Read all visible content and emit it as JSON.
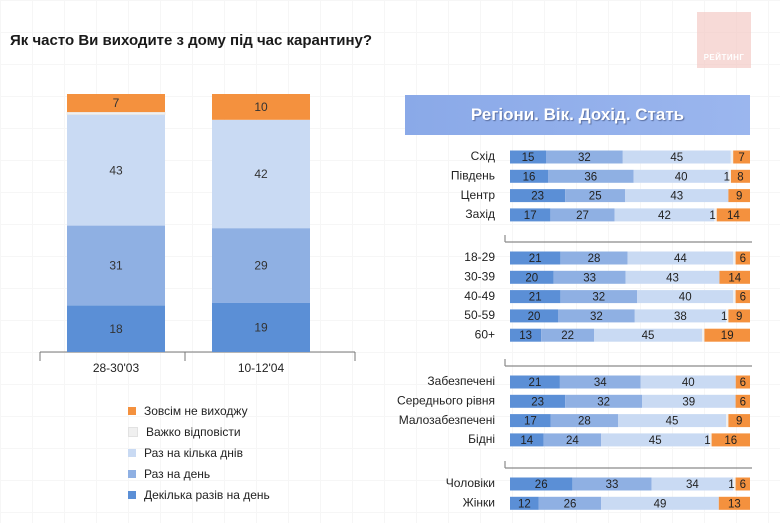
{
  "title": "Як часто Ви виходите з дому під час карантину?",
  "logo_text": "РЕЙТИНГ",
  "panel_title": "Регіони. Вік. Дохід. Стать",
  "colors": {
    "several_daily": "#5b8fd6",
    "once_daily": "#8fb0e3",
    "few_days": "#c9daf3",
    "hard_to_say": "#f0f0f0",
    "never": "#f4913e"
  },
  "legend": [
    {
      "label": "Зовсім не виходжу",
      "color_key": "never"
    },
    {
      "label": "Важко відповісти",
      "color_key": "hard_to_say"
    },
    {
      "label": "Раз на кілька днів",
      "color_key": "few_days"
    },
    {
      "label": "Раз на день",
      "color_key": "once_daily"
    },
    {
      "label": "Декілька разів на день",
      "color_key": "several_daily"
    }
  ],
  "chart_data": [
    {
      "type": "bar",
      "stacked": true,
      "categories": [
        "28-30'03",
        "10-12'04"
      ],
      "series": [
        {
          "name": "Декілька разів на день",
          "values": [
            18,
            19
          ],
          "labels": [
            "18",
            "19"
          ]
        },
        {
          "name": "Раз на день",
          "values": [
            31,
            29
          ],
          "labels": [
            "31",
            "29"
          ]
        },
        {
          "name": "Раз на кілька днів",
          "values": [
            43,
            42
          ],
          "labels": [
            "43",
            "42"
          ]
        },
        {
          "name": "Важко відповісти",
          "values": [
            1,
            0
          ],
          "labels": [
            "",
            ""
          ]
        },
        {
          "name": "Зовсім не виходжу",
          "values": [
            7,
            10
          ],
          "labels": [
            "7",
            "10"
          ]
        }
      ]
    },
    {
      "type": "bar",
      "stacked": true,
      "horizontal": true,
      "title": "Регіони. Вік. Дохід. Стать",
      "groups": [
        {
          "rows": [
            {
              "label": "Схід",
              "values": [
                15,
                32,
                45,
                1,
                7
              ],
              "labels": [
                "15",
                "32",
                "45",
                "",
                "7"
              ]
            },
            {
              "label": "Південь",
              "values": [
                16,
                36,
                40,
                1,
                8
              ],
              "labels": [
                "16",
                "36",
                "40",
                "1",
                "8"
              ]
            },
            {
              "label": "Центр",
              "values": [
                23,
                25,
                43,
                0,
                9
              ],
              "labels": [
                "23",
                "25",
                "43",
                "",
                "9"
              ]
            },
            {
              "label": "Захід",
              "values": [
                17,
                27,
                42,
                1,
                14
              ],
              "labels": [
                "17",
                "27",
                "42",
                "1",
                "14"
              ]
            }
          ]
        },
        {
          "rows": [
            {
              "label": "18-29",
              "values": [
                21,
                28,
                44,
                1,
                6
              ],
              "labels": [
                "21",
                "28",
                "44",
                "",
                "6"
              ]
            },
            {
              "label": "30-39",
              "values": [
                20,
                33,
                43,
                0,
                14
              ],
              "labels": [
                "20",
                "33",
                "43",
                "",
                "14"
              ]
            },
            {
              "label": "40-49",
              "values": [
                21,
                32,
                40,
                1,
                6
              ],
              "labels": [
                "21",
                "32",
                "40",
                "",
                "6"
              ]
            },
            {
              "label": "50-59",
              "values": [
                20,
                32,
                38,
                1,
                9
              ],
              "labels": [
                "20",
                "32",
                "38",
                "1",
                "9"
              ]
            },
            {
              "label": "60+",
              "values": [
                13,
                22,
                45,
                1,
                19
              ],
              "labels": [
                "13",
                "22",
                "45",
                "",
                "19"
              ]
            }
          ]
        },
        {
          "rows": [
            {
              "label": "Забезпечені",
              "values": [
                21,
                34,
                40,
                0,
                6
              ],
              "labels": [
                "21",
                "34",
                "40",
                "",
                "6"
              ]
            },
            {
              "label": "Середнього рівня",
              "values": [
                23,
                32,
                39,
                0,
                6
              ],
              "labels": [
                "23",
                "32",
                "39",
                "",
                "6"
              ]
            },
            {
              "label": "Малозабезпечені",
              "values": [
                17,
                28,
                45,
                1,
                9
              ],
              "labels": [
                "17",
                "28",
                "45",
                "",
                "9"
              ]
            },
            {
              "label": "Бідні",
              "values": [
                14,
                24,
                45,
                1,
                16
              ],
              "labels": [
                "14",
                "24",
                "45",
                "1",
                "16"
              ]
            }
          ]
        },
        {
          "rows": [
            {
              "label": "Чоловіки",
              "values": [
                26,
                33,
                34,
                1,
                6
              ],
              "labels": [
                "26",
                "33",
                "34",
                "1",
                "6"
              ]
            },
            {
              "label": "Жінки",
              "values": [
                12,
                26,
                49,
                0,
                13
              ],
              "labels": [
                "12",
                "26",
                "49",
                "",
                "13"
              ]
            }
          ]
        }
      ]
    }
  ]
}
